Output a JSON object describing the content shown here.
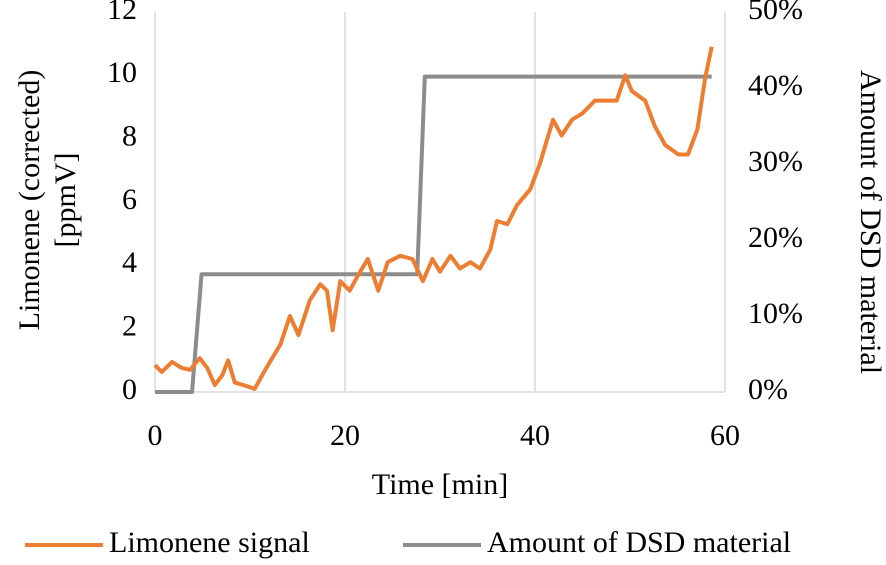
{
  "chart_data": {
    "type": "line",
    "xlabel": "Time [min]",
    "ylabel": [
      "Limonene (corrected)",
      "[ppmV]"
    ],
    "y2label": "Amount of DSD material",
    "xlim": [
      0,
      60
    ],
    "xticks": [
      0,
      20,
      40,
      60
    ],
    "ylim": [
      0,
      12
    ],
    "yticks": [
      0,
      2,
      4,
      6,
      8,
      10,
      12
    ],
    "y2lim": [
      0,
      50
    ],
    "y2ticks": [
      {
        "value": 0,
        "label": "0%"
      },
      {
        "value": 10,
        "label": "10%"
      },
      {
        "value": 20,
        "label": "20%"
      },
      {
        "value": 30,
        "label": "30%"
      },
      {
        "value": 40,
        "label": "40%"
      },
      {
        "value": 50,
        "label": "50%"
      }
    ],
    "grid": "x",
    "legend": "bottom",
    "series": [
      {
        "name": "Limonene signal",
        "color": "#ed7d31",
        "x": [
          0,
          0.7,
          1.8,
          2.8,
          3.7,
          4.7,
          5.5,
          6.3,
          7.1,
          7.7,
          8.4,
          9.5,
          10.5,
          11.6,
          13.2,
          14.2,
          15.1,
          16.3,
          17.4,
          18.1,
          18.7,
          19.5,
          20.5,
          21.4,
          22.4,
          23.5,
          24.5,
          25.8,
          27.1,
          28.2,
          29.2,
          30.0,
          31.1,
          32.1,
          33.2,
          34.2,
          35.3,
          36.0,
          37.1,
          38.1,
          39.5,
          40.5,
          41.9,
          42.8,
          43.9,
          45.0,
          46.3,
          47.7,
          48.6,
          49.5,
          50.2,
          51.6,
          52.6,
          53.7,
          55.1,
          56.1,
          57.1,
          57.9,
          58.6
        ],
        "values": [
          0.85,
          0.63,
          0.95,
          0.76,
          0.7,
          1.07,
          0.76,
          0.22,
          0.54,
          1.0,
          0.3,
          0.2,
          0.1,
          0.7,
          1.5,
          2.4,
          1.8,
          2.9,
          3.4,
          3.2,
          1.95,
          3.5,
          3.2,
          3.7,
          4.2,
          3.2,
          4.1,
          4.3,
          4.2,
          3.5,
          4.2,
          3.8,
          4.3,
          3.9,
          4.1,
          3.9,
          4.5,
          5.4,
          5.3,
          5.9,
          6.4,
          7.2,
          8.6,
          8.1,
          8.6,
          8.8,
          9.2,
          9.2,
          9.2,
          10.0,
          9.5,
          9.2,
          8.4,
          7.8,
          7.5,
          7.5,
          8.3,
          9.9,
          10.9
        ]
      },
      {
        "name": "Amount of DSD material",
        "color": "#8c8c8c",
        "axis": "y2",
        "x": [
          0,
          3.9,
          4.9,
          27.6,
          28.4,
          58.6
        ],
        "values": [
          0,
          0,
          15.5,
          15.5,
          41.5,
          41.5
        ]
      }
    ]
  }
}
